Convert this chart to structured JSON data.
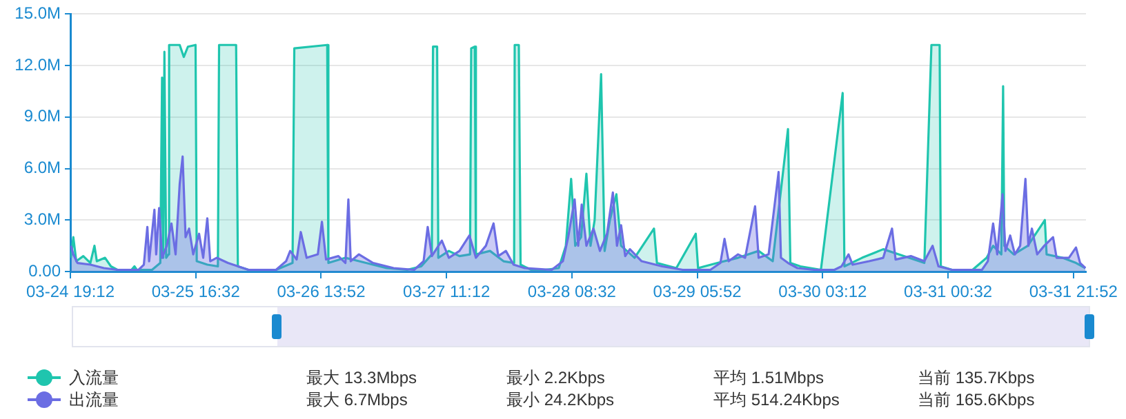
{
  "chart_data": {
    "type": "area",
    "x": [
      "--03-24T19:18",
      "--03-24T19:42",
      "--03-24T20:12",
      "--03-24T21:24",
      "--03-24T22:36",
      "--03-24T23:18",
      "--03-24T23:42",
      "--03-25T01:06",
      "--03-25T02:06",
      "--03-25T03:12",
      "--03-25T05:36",
      "--03-25T06:06",
      "--03-25T06:30",
      "--03-25T09:06",
      "--03-25T10:30",
      "--03-25T10:48",
      "--03-25T11:00",
      "--03-25T11:12",
      "--03-25T11:30",
      "--03-25T11:54",
      "--03-25T12:00",
      "--03-25T13:48",
      "--03-25T14:30",
      "--03-25T15:12",
      "--03-25T16:30",
      "--03-25T16:42",
      "--03-25T18:30",
      "--03-25T20:18",
      "--03-25T20:30",
      "--03-25T23:24",
      "--03-25T23:42",
      "--03-26T01:30",
      "--03-26T03:54",
      "--03-26T06:12",
      "--03-26T09:00",
      "--03-26T09:18",
      "--03-26T14:54",
      "--03-26T15:06",
      "--03-26T18:00",
      "--03-26T21:30",
      "--03-27T01:00",
      "--03-27T04:30",
      "--03-27T06:54",
      "--03-27T08:42",
      "--03-27T08:54",
      "--03-27T09:36",
      "--03-27T09:48",
      "--03-27T11:36",
      "--03-27T13:24",
      "--03-27T15:12",
      "--03-27T15:24",
      "--03-27T16:00",
      "--03-27T16:12",
      "--03-27T18:36",
      "--03-27T20:54",
      "--03-27T22:42",
      "--03-27T22:48",
      "--03-27T23:30",
      "--03-27T23:48",
      "--03-28T01:36",
      "--03-28T04:00",
      "--03-28T06:18",
      "--03-28T07:30",
      "--03-28T08:24",
      "--03-28T09:06",
      "--03-28T10:06",
      "--03-28T11:00",
      "--03-28T11:42",
      "--03-28T12:24",
      "--03-28T13:30",
      "--03-28T14:06",
      "--03-28T15:00",
      "--03-28T16:06",
      "--03-28T16:54",
      "--03-28T19:12",
      "--03-28T22:30",
      "--03-28T23:00",
      "--03-29T02:18",
      "--03-29T05:36",
      "--03-29T06:00",
      "--03-29T09:18",
      "--03-29T12:48",
      "--03-29T16:18",
      "--03-29T18:42",
      "--03-29T21:18",
      "--03-29T21:42",
      "--03-29T23:24",
      "--03-30T02:54",
      "--03-30T06:36",
      "--03-30T06:54",
      "--03-30T09:54",
      "--03-30T13:30",
      "--03-30T17:00",
      "--03-30T20:30",
      "--03-30T21:42",
      "--03-30T23:06",
      "--03-30T23:18",
      "--03-31T01:12",
      "--03-31T04:42",
      "--03-31T07:06",
      "--03-31T08:12",
      "--03-31T09:36",
      "--03-31T09:54",
      "--03-31T10:06",
      "--03-31T11:42",
      "--03-31T14:06",
      "--03-31T17:00",
      "--03-31T17:18",
      "--03-31T20:00",
      "--03-31T22:18",
      "--03-31T23:54"
    ],
    "series": [
      {
        "name": "入流量",
        "color": "#1fc5ae",
        "values": [
          0.8,
          2.0,
          0.6,
          0.9,
          0.5,
          1.5,
          0.6,
          0.8,
          0.3,
          0.1,
          0.1,
          0.3,
          0.1,
          0.1,
          0.5,
          11.3,
          0.8,
          12.8,
          0.8,
          1.0,
          13.2,
          13.2,
          12.5,
          13.1,
          13.2,
          0.6,
          0.4,
          0.3,
          13.2,
          13.2,
          0.3,
          0.1,
          0.1,
          0.1,
          0.5,
          13.0,
          13.2,
          0.5,
          0.8,
          0.5,
          0.2,
          0.1,
          0.3,
          1.0,
          13.1,
          13.1,
          0.8,
          1.2,
          0.9,
          1.0,
          13.0,
          13.1,
          1.0,
          1.2,
          0.6,
          0.5,
          13.2,
          13.2,
          0.4,
          0.1,
          0.1,
          0.2,
          1.5,
          5.4,
          1.5,
          2.0,
          5.7,
          1.5,
          3.0,
          11.5,
          1.2,
          3.0,
          4.5,
          1.5,
          0.8,
          2.5,
          0.5,
          0.2,
          2.2,
          0.2,
          0.5,
          0.8,
          1.2,
          0.6,
          8.3,
          0.5,
          0.3,
          0.1,
          10.4,
          0.3,
          0.8,
          1.3,
          0.9,
          0.5,
          13.2,
          13.2,
          0.3,
          0.1,
          0.1,
          0.8,
          1.5,
          1.0,
          10.8,
          1.5,
          1.0,
          1.5,
          3.0,
          1.0,
          0.8,
          0.5,
          0.2
        ]
      },
      {
        "name": "出流量",
        "color": "#6b6de3",
        "x": [
          "--03-24T19:18",
          "--03-24T19:42",
          "--03-24T20:24",
          "--03-24T22:36",
          "--03-25T00:54",
          "--03-25T03:12",
          "--03-25T06:48",
          "--03-25T07:42",
          "--03-25T08:18",
          "--03-25T08:36",
          "--03-25T09:30",
          "--03-25T09:48",
          "--03-25T10:18",
          "--03-25T10:48",
          "--03-25T11:36",
          "--03-25T12:24",
          "--03-25T13:06",
          "--03-25T13:48",
          "--03-25T14:18",
          "--03-25T14:48",
          "--03-25T15:24",
          "--03-25T16:06",
          "--03-25T17:06",
          "--03-25T17:48",
          "--03-25T18:30",
          "--03-25T19:00",
          "--03-25T20:06",
          "--03-25T22:00",
          "--03-26T01:30",
          "--03-26T06:12",
          "--03-26T07:54",
          "--03-26T08:36",
          "--03-26T09:42",
          "--03-26T10:24",
          "--03-26T11:24",
          "--03-26T13:18",
          "--03-26T14:00",
          "--03-26T14:42",
          "--03-26T16:48",
          "--03-26T18:00",
          "--03-26T18:30",
          "--03-26T18:54",
          "--03-26T20:18",
          "--03-26T22:42",
          "--03-27T02:12",
          "--03-27T05:42",
          "--03-27T07:18",
          "--03-27T08:00",
          "--03-27T08:42",
          "--03-27T10:24",
          "--03-27T11:36",
          "--03-27T13:24",
          "--03-27T15:06",
          "--03-27T16:12",
          "--03-27T17:54",
          "--03-27T19:12",
          "--03-27T20:00",
          "--03-27T21:18",
          "--03-27T22:36",
          "--03-28T00:30",
          "--03-28T05:06",
          "--03-28T07:00",
          "--03-28T07:54",
          "--03-28T09:00",
          "--03-28T09:36",
          "--03-28T10:12",
          "--03-28T11:00",
          "--03-28T12:12",
          "--03-28T13:18",
          "--03-28T14:30",
          "--03-28T15:30",
          "--03-28T16:12",
          "--03-28T16:54",
          "--03-28T17:36",
          "--03-28T18:24",
          "--03-28T20:24",
          "--03-28T23:54",
          "--03-29T03:24",
          "--03-29T08:06",
          "--03-29T09:48",
          "--03-29T10:30",
          "--03-29T11:12",
          "--03-29T12:48",
          "--03-29T14:00",
          "--03-29T15:42",
          "--03-29T16:18",
          "--03-29T18:00",
          "--03-29T19:42",
          "--03-29T20:06",
          "--03-29T21:18",
          "--03-29T22:54",
          "--03-30T01:42",
          "--03-30T05:12",
          "--03-30T06:24",
          "--03-30T07:36",
          "--03-30T08:18",
          "--03-30T11:06",
          "--03-30T13:30",
          "--03-30T15:00",
          "--03-30T15:36",
          "--03-30T18:12",
          "--03-30T20:30",
          "--03-30T21:54",
          "--03-30T22:54",
          "--03-31T01:12",
          "--03-31T06:18",
          "--03-31T07:18",
          "--03-31T08:12",
          "--03-31T08:54",
          "--03-31T09:48",
          "--03-31T10:18",
          "--03-31T11:06",
          "--03-31T11:54",
          "--03-31T12:48",
          "--03-31T13:42",
          "--03-31T14:12",
          "--03-31T14:48",
          "--03-31T15:42",
          "--03-31T16:54",
          "--03-31T18:24",
          "--03-31T19:00",
          "--03-31T21:06",
          "--03-31T22:18",
          "--03-31T23:00",
          "--03-31T23:54"
        ],
        "values": [
          1.5,
          1.0,
          0.5,
          0.4,
          0.2,
          0.1,
          0.1,
          0.4,
          2.6,
          0.6,
          3.6,
          1.0,
          3.7,
          0.8,
          1.5,
          2.8,
          1.0,
          5.1,
          6.7,
          2.0,
          2.5,
          1.0,
          2.2,
          0.8,
          3.1,
          0.6,
          0.8,
          0.5,
          0.1,
          0.1,
          0.6,
          1.2,
          0.7,
          2.3,
          0.8,
          1.0,
          2.9,
          0.7,
          0.9,
          0.5,
          4.2,
          0.6,
          1.0,
          0.5,
          0.2,
          0.1,
          0.6,
          2.6,
          0.9,
          1.8,
          0.8,
          1.2,
          2.1,
          0.8,
          1.5,
          2.8,
          0.9,
          1.2,
          0.4,
          0.2,
          0.1,
          0.6,
          2.0,
          4.2,
          1.5,
          3.9,
          1.5,
          2.5,
          1.2,
          2.2,
          4.6,
          1.5,
          2.7,
          0.9,
          1.3,
          0.6,
          0.3,
          0.1,
          0.1,
          0.5,
          1.9,
          0.6,
          1.0,
          0.8,
          3.8,
          0.8,
          1.0,
          5.8,
          0.8,
          0.5,
          0.2,
          0.1,
          0.1,
          0.3,
          1.0,
          0.4,
          0.6,
          0.8,
          2.5,
          0.7,
          0.9,
          0.6,
          1.5,
          0.3,
          0.1,
          0.1,
          0.6,
          2.8,
          1.0,
          4.5,
          1.2,
          2.1,
          1.0,
          1.5,
          5.4,
          1.5,
          2.5,
          1.0,
          1.5,
          2.0,
          0.8,
          0.8,
          1.4,
          0.5,
          0.2
        ]
      }
    ],
    "xlim": [
      "--03-24T19:12",
      "--04-01T00:00"
    ],
    "xticks": [
      {
        "value": "--03-24T19:12",
        "label": "03-24 19:12"
      },
      {
        "value": "--03-25T16:32",
        "label": "03-25 16:32"
      },
      {
        "value": "--03-26T13:52",
        "label": "03-26 13:52"
      },
      {
        "value": "--03-27T11:12",
        "label": "03-27 11:12"
      },
      {
        "value": "--03-28T08:32",
        "label": "03-28 08:32"
      },
      {
        "value": "--03-29T05:52",
        "label": "03-29 05:52"
      },
      {
        "value": "--03-30T03:12",
        "label": "03-30 03:12"
      },
      {
        "value": "--03-31T00:32",
        "label": "03-31 00:32"
      },
      {
        "value": "--03-31T21:52",
        "label": "03-31 21:52"
      }
    ],
    "ylim": [
      0,
      15
    ],
    "yticks": [
      {
        "value": 0,
        "label": "0.00"
      },
      {
        "value": 3,
        "label": "3.0M"
      },
      {
        "value": 6,
        "label": "6.0M"
      },
      {
        "value": 9,
        "label": "9.0M"
      },
      {
        "value": 12,
        "label": "12.0M"
      },
      {
        "value": 15,
        "label": "15.0M"
      }
    ],
    "grid": "y",
    "legend": "bottom left",
    "marker": "none",
    "line_style": "solid",
    "annotations": [
      "最大 13.3Mbps",
      "最小 2.2Kbps",
      "平均 1.51Mbps",
      "当前 135.7Kbps",
      "最大 6.7Mbps",
      "最小 24.2Kbps",
      "平均 514.24Kbps",
      "当前 165.6Kbps"
    ]
  }
}
